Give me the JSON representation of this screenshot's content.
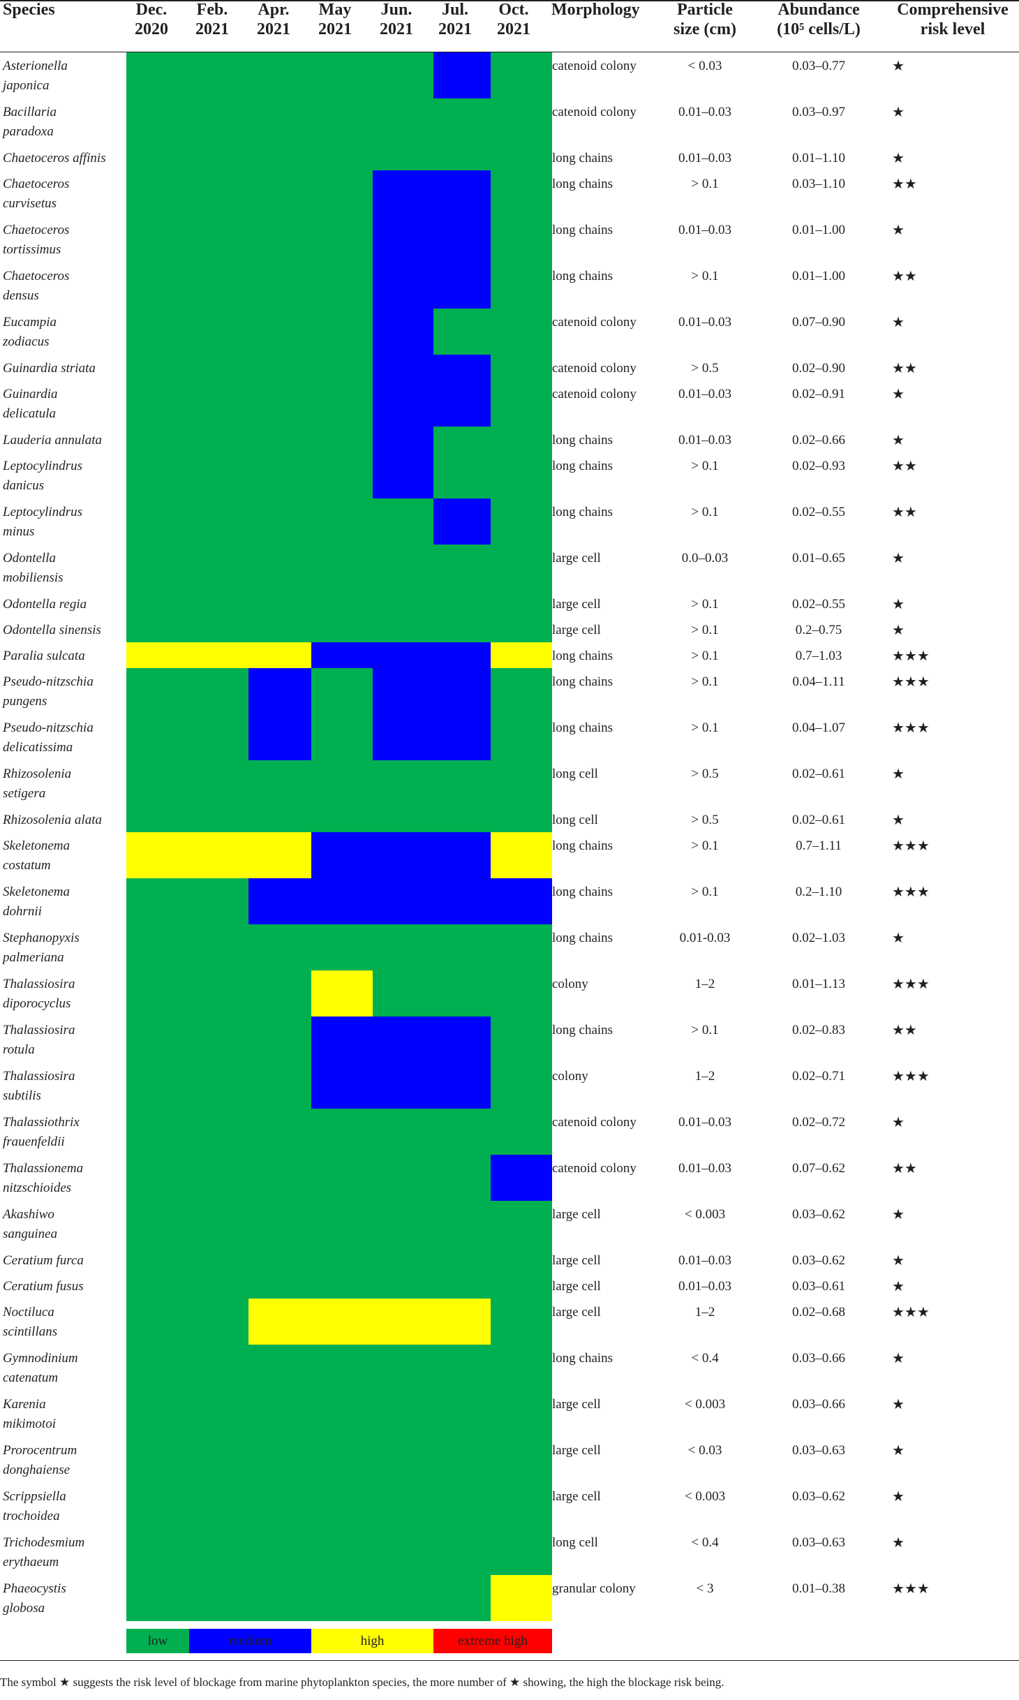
{
  "headers": {
    "species": "Species",
    "months": [
      "Dec.\n2020",
      "Feb.\n2021",
      "Apr.\n2021",
      "May\n2021",
      "Jun.\n2021",
      "Jul.\n2021",
      "Oct.\n2021"
    ],
    "morphology": "Morphology",
    "particle": "Particle\nsize (cm)",
    "abundance": "Abundance\n(10⁵ cells/L)",
    "risk": "Comprehensive\nrisk level"
  },
  "colors": {
    "low": "#00b050",
    "medium": "#0000ff",
    "high": "#ffff00",
    "extreme": "#ff0000"
  },
  "rows": [
    {
      "species": "Asterionella\njaponica",
      "levels": [
        "low",
        "low",
        "low",
        "low",
        "low",
        "medium",
        "low"
      ],
      "morphology": "catenoid colony",
      "particle": "< 0.03",
      "abundance": "0.03–0.77",
      "risk": "★"
    },
    {
      "species": "Bacillaria\nparadoxa",
      "levels": [
        "low",
        "low",
        "low",
        "low",
        "low",
        "low",
        "low"
      ],
      "morphology": "catenoid colony",
      "particle": "0.01–0.03",
      "abundance": "0.03–0.97",
      "risk": "★"
    },
    {
      "species": "Chaetoceros affinis",
      "levels": [
        "low",
        "low",
        "low",
        "low",
        "low",
        "low",
        "low"
      ],
      "morphology": "long chains",
      "particle": "0.01–0.03",
      "abundance": "0.01–1.10",
      "risk": "★"
    },
    {
      "species": "Chaetoceros\ncurvisetus",
      "levels": [
        "low",
        "low",
        "low",
        "low",
        "medium",
        "medium",
        "low"
      ],
      "morphology": "long chains",
      "particle": "> 0.1",
      "abundance": "0.03–1.10",
      "risk": "★★"
    },
    {
      "species": "Chaetoceros\ntortissimus",
      "levels": [
        "low",
        "low",
        "low",
        "low",
        "medium",
        "medium",
        "low"
      ],
      "morphology": "long chains",
      "particle": "0.01–0.03",
      "abundance": "0.01–1.00",
      "risk": "★"
    },
    {
      "species": "Chaetoceros\ndensus",
      "levels": [
        "low",
        "low",
        "low",
        "low",
        "medium",
        "medium",
        "low"
      ],
      "morphology": "long chains",
      "particle": "> 0.1",
      "abundance": "0.01–1.00",
      "risk": "★★"
    },
    {
      "species": "Eucampia\nzodiacus",
      "levels": [
        "low",
        "low",
        "low",
        "low",
        "medium",
        "low",
        "low"
      ],
      "morphology": "catenoid colony",
      "particle": "0.01–0.03",
      "abundance": "0.07–0.90",
      "risk": "★"
    },
    {
      "species": "Guinardia striata",
      "levels": [
        "low",
        "low",
        "low",
        "low",
        "medium",
        "medium",
        "low"
      ],
      "morphology": "catenoid colony",
      "particle": "> 0.5",
      "abundance": "0.02–0.90",
      "risk": "★★"
    },
    {
      "species": "Guinardia\ndelicatula",
      "levels": [
        "low",
        "low",
        "low",
        "low",
        "medium",
        "medium",
        "low"
      ],
      "morphology": "catenoid colony",
      "particle": "0.01–0.03",
      "abundance": "0.02–0.91",
      "risk": "★"
    },
    {
      "species": "Lauderia annulata",
      "levels": [
        "low",
        "low",
        "low",
        "low",
        "medium",
        "low",
        "low"
      ],
      "morphology": "long chains",
      "particle": "0.01–0.03",
      "abundance": "0.02–0.66",
      "risk": "★"
    },
    {
      "species": "Leptocylindrus\ndanicus",
      "levels": [
        "low",
        "low",
        "low",
        "low",
        "medium",
        "low",
        "low"
      ],
      "morphology": "long chains",
      "particle": "> 0.1",
      "abundance": "0.02–0.93",
      "risk": "★★"
    },
    {
      "species": "Leptocylindrus\nminus",
      "levels": [
        "low",
        "low",
        "low",
        "low",
        "low",
        "medium",
        "low"
      ],
      "morphology": "long chains",
      "particle": "> 0.1",
      "abundance": "0.02–0.55",
      "risk": "★★"
    },
    {
      "species": "Odontella\nmobiliensis",
      "levels": [
        "low",
        "low",
        "low",
        "low",
        "low",
        "low",
        "low"
      ],
      "morphology": "large cell",
      "particle": "0.0–0.03",
      "abundance": "0.01–0.65",
      "risk": "★"
    },
    {
      "species": "Odontella regia",
      "levels": [
        "low",
        "low",
        "low",
        "low",
        "low",
        "low",
        "low"
      ],
      "morphology": "large cell",
      "particle": "> 0.1",
      "abundance": "0.02–0.55",
      "risk": "★"
    },
    {
      "species": "Odontella sinensis",
      "levels": [
        "low",
        "low",
        "low",
        "low",
        "low",
        "low",
        "low"
      ],
      "morphology": "large cell",
      "particle": "> 0.1",
      "abundance": "0.2–0.75",
      "risk": "★"
    },
    {
      "species": "Paralia sulcata",
      "levels": [
        "high",
        "high",
        "high",
        "medium",
        "medium",
        "medium",
        "high"
      ],
      "morphology": "long chains",
      "particle": "> 0.1",
      "abundance": "0.7–1.03",
      "risk": "★★★"
    },
    {
      "species": "Pseudo-nitzschia\npungens",
      "levels": [
        "low",
        "low",
        "medium",
        "low",
        "medium",
        "medium",
        "low"
      ],
      "morphology": "long chains",
      "particle": "> 0.1",
      "abundance": "0.04–1.11",
      "risk": "★★★"
    },
    {
      "species": "Pseudo-nitzschia\ndelicatissima",
      "levels": [
        "low",
        "low",
        "medium",
        "low",
        "medium",
        "medium",
        "low"
      ],
      "morphology": "long chains",
      "particle": "> 0.1",
      "abundance": "0.04–1.07",
      "risk": "★★★"
    },
    {
      "species": "Rhizosolenia\nsetigera",
      "levels": [
        "low",
        "low",
        "low",
        "low",
        "low",
        "low",
        "low"
      ],
      "morphology": "long cell",
      "particle": "> 0.5",
      "abundance": "0.02–0.61",
      "risk": "★"
    },
    {
      "species": "Rhizosolenia alata",
      "levels": [
        "low",
        "low",
        "low",
        "low",
        "low",
        "low",
        "low"
      ],
      "morphology": "long cell",
      "particle": "> 0.5",
      "abundance": "0.02–0.61",
      "risk": "★"
    },
    {
      "species": "Skeletonema\ncostatum",
      "levels": [
        "high",
        "high",
        "high",
        "medium",
        "medium",
        "medium",
        "high"
      ],
      "morphology": "long chains",
      "particle": "> 0.1",
      "abundance": "0.7–1.11",
      "risk": "★★★"
    },
    {
      "species": "Skeletonema\ndohrnii",
      "levels": [
        "low",
        "low",
        "medium",
        "medium",
        "medium",
        "medium",
        "medium"
      ],
      "morphology": "long chains",
      "particle": "> 0.1",
      "abundance": "0.2–1.10",
      "risk": "★★★"
    },
    {
      "species": "Stephanopyxis\npalmeriana",
      "levels": [
        "low",
        "low",
        "low",
        "low",
        "low",
        "low",
        "low"
      ],
      "morphology": "long chains",
      "particle": "0.01-0.03",
      "abundance": "0.02–1.03",
      "risk": "★"
    },
    {
      "species": "Thalassiosira\ndiporocyclus",
      "levels": [
        "low",
        "low",
        "low",
        "high",
        "low",
        "low",
        "low"
      ],
      "morphology": "colony",
      "particle": "1–2",
      "abundance": "0.01–1.13",
      "risk": "★★★"
    },
    {
      "species": "Thalassiosira\nrotula",
      "levels": [
        "low",
        "low",
        "low",
        "medium",
        "medium",
        "medium",
        "low"
      ],
      "morphology": "long chains",
      "particle": "> 0.1",
      "abundance": "0.02–0.83",
      "risk": "★★"
    },
    {
      "species": "Thalassiosira\nsubtilis",
      "levels": [
        "low",
        "low",
        "low",
        "medium",
        "medium",
        "medium",
        "low"
      ],
      "morphology": "colony",
      "particle": "1–2",
      "abundance": "0.02–0.71",
      "risk": "★★★"
    },
    {
      "species": "Thalassiothrix\nfrauenfeldii",
      "levels": [
        "low",
        "low",
        "low",
        "low",
        "low",
        "low",
        "low"
      ],
      "morphology": "catenoid colony",
      "particle": "0.01–0.03",
      "abundance": "0.02–0.72",
      "risk": "★"
    },
    {
      "species": "Thalassionema\nnitzschioides",
      "levels": [
        "low",
        "low",
        "low",
        "low",
        "low",
        "low",
        "medium"
      ],
      "morphology": "catenoid colony",
      "particle": "0.01–0.03",
      "abundance": "0.07–0.62",
      "risk": "★★"
    },
    {
      "species": "Akashiwo\nsanguinea",
      "levels": [
        "low",
        "low",
        "low",
        "low",
        "low",
        "low",
        "low"
      ],
      "morphology": "large cell",
      "particle": "< 0.003",
      "abundance": "0.03–0.62",
      "risk": "★"
    },
    {
      "species": "Ceratium furca",
      "levels": [
        "low",
        "low",
        "low",
        "low",
        "low",
        "low",
        "low"
      ],
      "morphology": "large cell",
      "particle": "0.01–0.03",
      "abundance": "0.03–0.62",
      "risk": "★"
    },
    {
      "species": "Ceratium fusus",
      "levels": [
        "low",
        "low",
        "low",
        "low",
        "low",
        "low",
        "low"
      ],
      "morphology": "large cell",
      "particle": "0.01–0.03",
      "abundance": "0.03–0.61",
      "risk": "★"
    },
    {
      "species": "Noctiluca\nscintillans",
      "levels": [
        "low",
        "low",
        "high",
        "high",
        "high",
        "high",
        "low"
      ],
      "morphology": "large cell",
      "particle": "1–2",
      "abundance": "0.02–0.68",
      "risk": "★★★"
    },
    {
      "species": "Gymnodinium\ncatenatum",
      "levels": [
        "low",
        "low",
        "low",
        "low",
        "low",
        "low",
        "low"
      ],
      "morphology": "long chains",
      "particle": "< 0.4",
      "abundance": "0.03–0.66",
      "risk": "★"
    },
    {
      "species": "Karenia\nmikimotoi",
      "levels": [
        "low",
        "low",
        "low",
        "low",
        "low",
        "low",
        "low"
      ],
      "morphology": "large cell",
      "particle": "< 0.003",
      "abundance": "0.03–0.66",
      "risk": "★"
    },
    {
      "species": "Prorocentrum\ndonghaiense",
      "levels": [
        "low",
        "low",
        "low",
        "low",
        "low",
        "low",
        "low"
      ],
      "morphology": "large cell",
      "particle": "< 0.03",
      "abundance": "0.03–0.63",
      "risk": "★"
    },
    {
      "species": "Scrippsiella\ntrochoidea",
      "levels": [
        "low",
        "low",
        "low",
        "low",
        "low",
        "low",
        "low"
      ],
      "morphology": "large cell",
      "particle": "< 0.003",
      "abundance": "0.03–0.62",
      "risk": "★"
    },
    {
      "species": "Trichodesmium\nerythaeum",
      "levels": [
        "low",
        "low",
        "low",
        "low",
        "low",
        "low",
        "low"
      ],
      "morphology": "long cell",
      "particle": "< 0.4",
      "abundance": "0.03–0.63",
      "risk": "★"
    },
    {
      "species": "Phaeocystis\nglobosa",
      "levels": [
        "low",
        "low",
        "low",
        "low",
        "low",
        "low",
        "high"
      ],
      "morphology": "granular colony",
      "particle": "< 3",
      "abundance": "0.01–0.38",
      "risk": "★★★"
    }
  ],
  "legend": [
    {
      "label": "low",
      "level": "low"
    },
    {
      "label": "medium",
      "level": "medium"
    },
    {
      "label": "high",
      "level": "high"
    },
    {
      "label": "extreme high",
      "level": "extreme"
    }
  ],
  "footnote": "The symbol ★ suggests the risk level of blockage from marine phytoplankton species, the more number of ★ showing, the high the blockage risk being."
}
